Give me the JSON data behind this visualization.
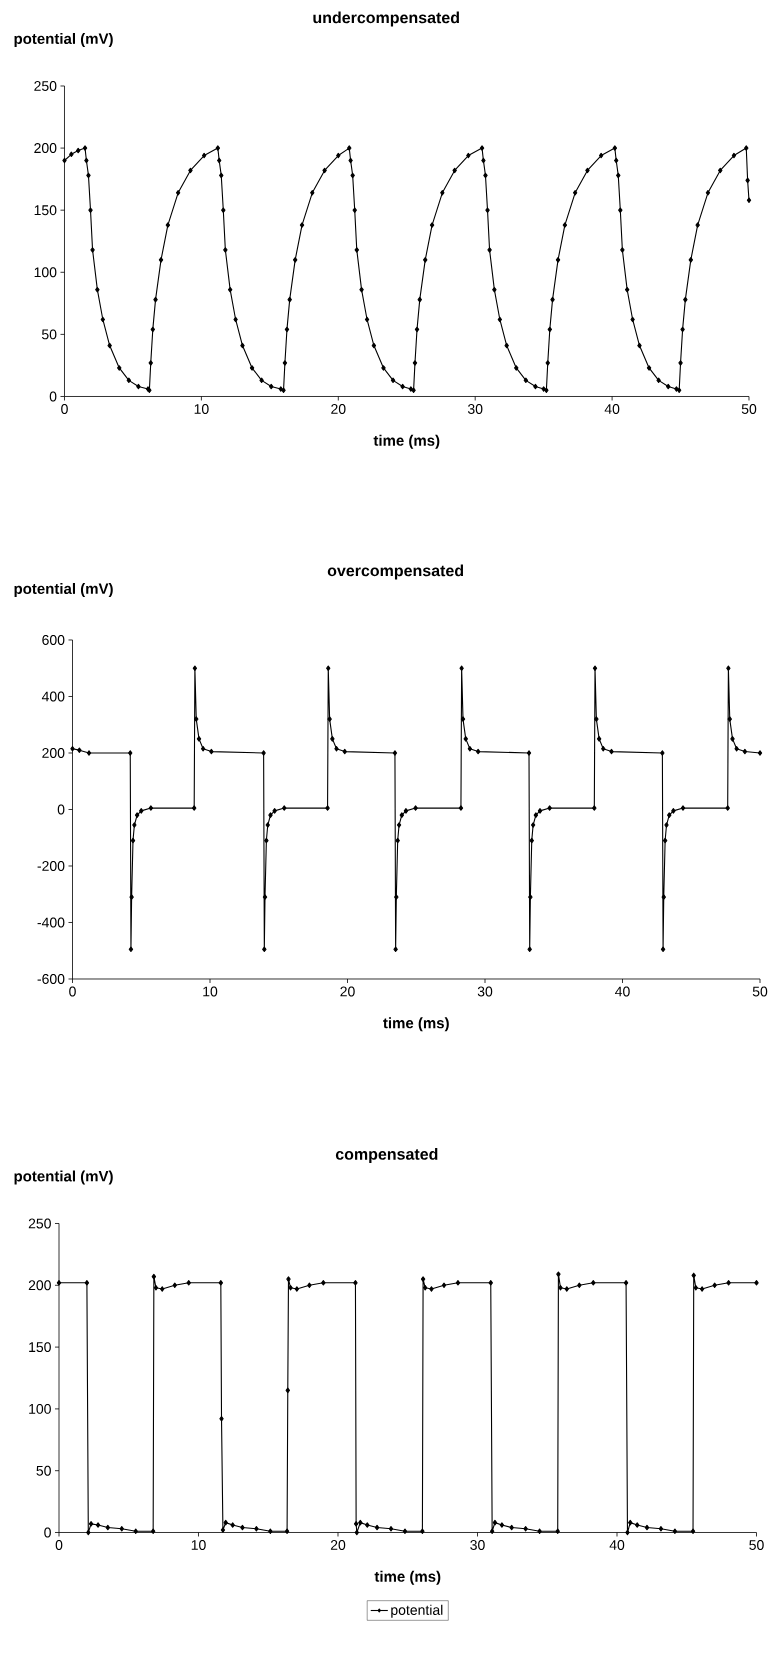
{
  "chart_data": [
    {
      "type": "line",
      "title": "undercompensated",
      "xlabel": "time (ms)",
      "ylabel": "potential (mV)",
      "xlim": [
        0,
        50
      ],
      "ylim": [
        0,
        250
      ],
      "xticks": [
        0,
        10,
        20,
        30,
        40,
        50
      ],
      "yticks": [
        0,
        50,
        100,
        150,
        200,
        250
      ],
      "grid": false,
      "marker": "diamond",
      "legend": false,
      "x": [
        0,
        0.5,
        1.0,
        1.5,
        1.6,
        1.75,
        1.9,
        2.05,
        2.4,
        2.8,
        3.3,
        4.0,
        4.7,
        5.4,
        6.1,
        6.2,
        6.3,
        6.45,
        6.65,
        7.05,
        7.55,
        8.3,
        9.2,
        10.2,
        11.2,
        11.3,
        11.45,
        11.6,
        11.75,
        12.1,
        12.5,
        13.0,
        13.7,
        14.4,
        15.1,
        15.8,
        16.0,
        16.1,
        16.25,
        16.45,
        16.85,
        17.35,
        18.1,
        19.0,
        20.0,
        20.8,
        20.9,
        21.05,
        21.2,
        21.35,
        21.7,
        22.1,
        22.6,
        23.3,
        24.0,
        24.7,
        25.3,
        25.5,
        25.6,
        25.75,
        25.95,
        26.35,
        26.85,
        27.6,
        28.5,
        29.5,
        30.5,
        30.6,
        30.75,
        30.9,
        31.05,
        31.4,
        31.8,
        32.3,
        33.0,
        33.7,
        34.4,
        35.0,
        35.2,
        35.3,
        35.45,
        35.65,
        36.05,
        36.55,
        37.3,
        38.2,
        39.2,
        40.2,
        40.3,
        40.45,
        40.6,
        40.75,
        41.1,
        41.5,
        42.0,
        42.7,
        43.4,
        44.1,
        44.7,
        44.9,
        45.0,
        45.15,
        45.35,
        45.75,
        46.25,
        47.0,
        47.9,
        48.9,
        49.8,
        49.9,
        50.0
      ],
      "series": [
        {
          "color": "#000000",
          "values": [
            190,
            195,
            198,
            200,
            190,
            178,
            150,
            118,
            86,
            62,
            41,
            23,
            13,
            8,
            6,
            5,
            27,
            54,
            78,
            110,
            138,
            164,
            182,
            194,
            200,
            190,
            178,
            150,
            118,
            86,
            62,
            41,
            23,
            13,
            8,
            6,
            5,
            27,
            54,
            78,
            110,
            138,
            164,
            182,
            194,
            200,
            190,
            178,
            150,
            118,
            86,
            62,
            41,
            23,
            13,
            8,
            6,
            5,
            27,
            54,
            78,
            110,
            138,
            164,
            182,
            194,
            200,
            190,
            178,
            150,
            118,
            86,
            62,
            41,
            23,
            13,
            8,
            6,
            5,
            27,
            54,
            78,
            110,
            138,
            164,
            182,
            194,
            200,
            190,
            178,
            150,
            118,
            86,
            62,
            41,
            23,
            13,
            8,
            6,
            5,
            27,
            54,
            78,
            110,
            138,
            164,
            182,
            194,
            200,
            174,
            158
          ]
        }
      ]
    },
    {
      "type": "line",
      "title": "overcompensated",
      "xlabel": "time (ms)",
      "ylabel": "potential (mV)",
      "xlim": [
        0,
        50
      ],
      "ylim": [
        -600,
        600
      ],
      "xticks": [
        0,
        10,
        20,
        30,
        40,
        50
      ],
      "yticks": [
        -600,
        -400,
        -200,
        0,
        200,
        400,
        600
      ],
      "grid": false,
      "marker": "diamond",
      "legend": false,
      "x": [
        0,
        0.5,
        1.2,
        4.2,
        4.25,
        4.3,
        4.4,
        4.5,
        4.7,
        5.0,
        5.7,
        8.85,
        8.9,
        9.0,
        9.2,
        9.5,
        10.1,
        13.9,
        13.95,
        14.0,
        14.1,
        14.2,
        14.4,
        14.7,
        15.4,
        18.55,
        18.6,
        18.7,
        18.9,
        19.2,
        19.8,
        23.45,
        23.5,
        23.55,
        23.65,
        23.75,
        23.95,
        24.25,
        24.95,
        28.25,
        28.3,
        28.4,
        28.6,
        28.9,
        29.5,
        33.2,
        33.25,
        33.3,
        33.4,
        33.5,
        33.7,
        34.0,
        34.7,
        37.95,
        38.0,
        38.1,
        38.3,
        38.6,
        39.2,
        42.9,
        42.95,
        43.0,
        43.1,
        43.2,
        43.4,
        43.7,
        44.4,
        47.65,
        47.7,
        47.8,
        48.0,
        48.3,
        48.9,
        50
      ],
      "series": [
        {
          "color": "#000000",
          "values": [
            215,
            210,
            200,
            200,
            -495,
            -310,
            -110,
            -55,
            -20,
            -5,
            5,
            5,
            500,
            320,
            250,
            215,
            205,
            200,
            -495,
            -310,
            -110,
            -55,
            -20,
            -5,
            5,
            5,
            500,
            320,
            250,
            215,
            205,
            200,
            -495,
            -310,
            -110,
            -55,
            -20,
            -5,
            5,
            5,
            500,
            320,
            250,
            215,
            205,
            200,
            -495,
            -310,
            -110,
            -55,
            -20,
            -5,
            5,
            5,
            500,
            320,
            250,
            215,
            205,
            200,
            -495,
            -310,
            -110,
            -55,
            -20,
            -5,
            5,
            5,
            500,
            320,
            250,
            215,
            205,
            200
          ]
        }
      ]
    },
    {
      "type": "line",
      "title": "compensated",
      "xlabel": "time (ms)",
      "ylabel": "potential (mV)",
      "xlim": [
        0,
        50
      ],
      "ylim": [
        0,
        250
      ],
      "xticks": [
        0,
        10,
        20,
        30,
        40,
        50
      ],
      "yticks": [
        0,
        50,
        100,
        150,
        200,
        250
      ],
      "grid": false,
      "marker": "diamond",
      "legend": "bottom",
      "x": [
        0,
        2.0,
        2.1,
        2.3,
        2.8,
        3.5,
        4.5,
        5.5,
        6.75,
        6.8,
        6.95,
        7.4,
        8.3,
        9.3,
        11.6,
        11.65,
        11.75,
        11.95,
        12.45,
        13.15,
        14.15,
        15.15,
        16.35,
        16.4,
        16.45,
        16.6,
        17.05,
        17.95,
        18.95,
        21.25,
        21.3,
        21.35,
        21.6,
        22.1,
        22.8,
        23.8,
        24.8,
        26.05,
        26.1,
        26.25,
        26.7,
        27.6,
        28.6,
        30.95,
        31.05,
        31.25,
        31.75,
        32.45,
        33.45,
        34.45,
        35.75,
        35.8,
        35.95,
        36.4,
        37.3,
        38.3,
        40.65,
        40.75,
        40.95,
        41.45,
        42.15,
        43.15,
        44.15,
        45.45,
        45.5,
        45.65,
        46.1,
        47.0,
        48.0,
        50
      ],
      "series": [
        {
          "name": "potential",
          "color": "#000000",
          "values": [
            202,
            202,
            0,
            7,
            6,
            4,
            3,
            1,
            1,
            207,
            198,
            197,
            200,
            202,
            202,
            92,
            2,
            8,
            6,
            4,
            3,
            1,
            1,
            115,
            205,
            198,
            197,
            200,
            202,
            202,
            7,
            0,
            8,
            6,
            4,
            3,
            1,
            1,
            205,
            198,
            197,
            200,
            202,
            202,
            1,
            8,
            6,
            4,
            3,
            1,
            1,
            209,
            198,
            197,
            200,
            202,
            202,
            0,
            8,
            6,
            4,
            3,
            1,
            1,
            208,
            198,
            197,
            200,
            202,
            202
          ]
        }
      ]
    }
  ]
}
